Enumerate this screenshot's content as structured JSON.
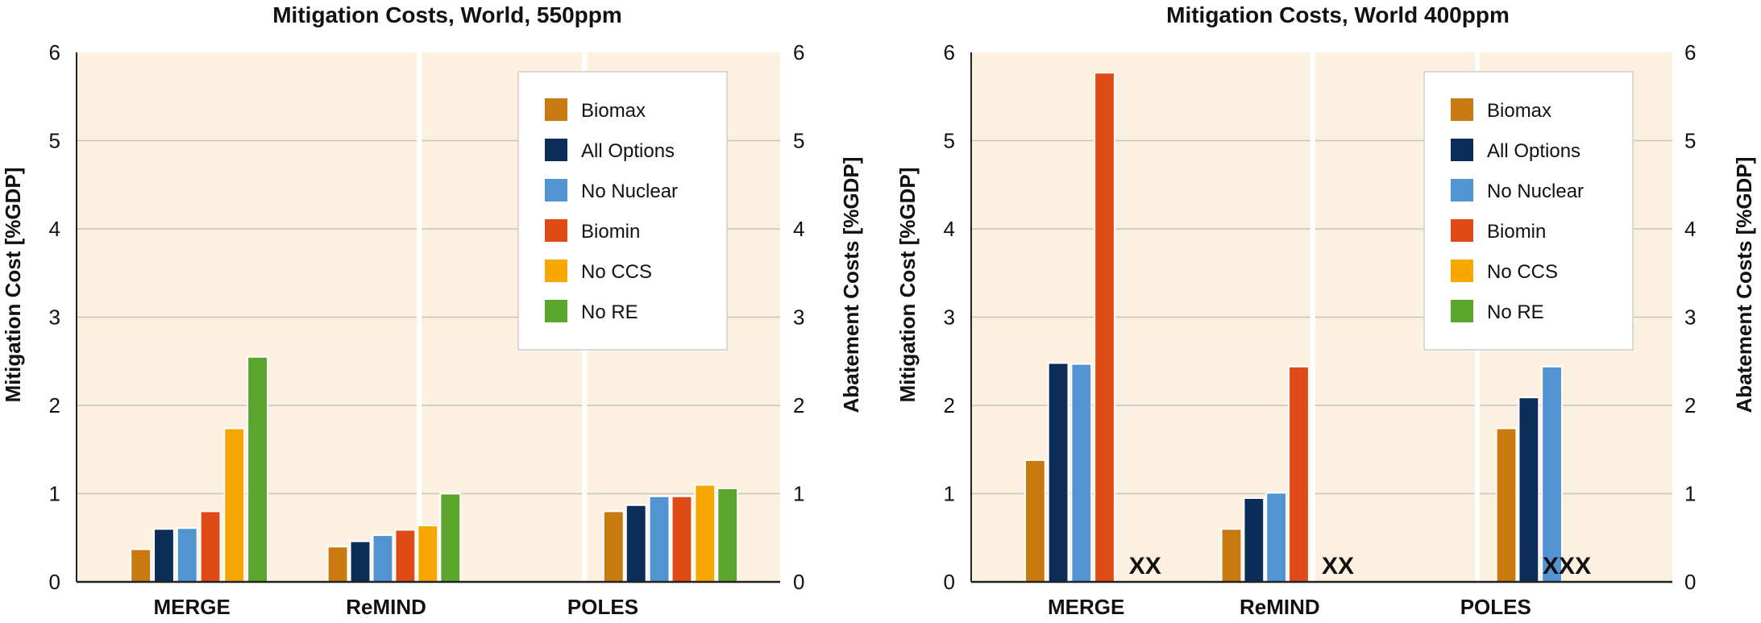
{
  "colors": {
    "plot_background": "#fcf1e1",
    "panel_divider": "#ffffff",
    "gridline": "#c9c6c0",
    "axis": "#222222",
    "text": "#111111",
    "bar_outline": "#ffffff",
    "legend_background": "#ffffff",
    "legend_border": "#cfcfcf"
  },
  "legend": {
    "placement": "top-right",
    "items": [
      {
        "label": "Biomax",
        "color": "#c8790f"
      },
      {
        "label": "All Options",
        "color": "#0c2d57"
      },
      {
        "label": "No Nuclear",
        "color": "#5294d1"
      },
      {
        "label": "Biomin",
        "color": "#df4b16"
      },
      {
        "label": "No CCS",
        "color": "#f7a800"
      },
      {
        "label": "No RE",
        "color": "#5ca52d"
      }
    ]
  },
  "chart_data": [
    {
      "type": "bar",
      "title": "Mitigation Costs, World, 550ppm",
      "ylabel": "Mitigation Cost [%GDP]",
      "ylabel_right": "Abatement Costs [%GDP]",
      "ylim": [
        0,
        6
      ],
      "yticks": [
        "0",
        "1",
        "2",
        "3",
        "4",
        "5",
        "6"
      ],
      "grid": true,
      "legend_placement": "top-right",
      "categories": [
        "MERGE",
        "ReMIND",
        "POLES"
      ],
      "series": [
        {
          "name": "Biomax",
          "values": [
            0.37,
            0.4,
            0.8
          ]
        },
        {
          "name": "All Options",
          "values": [
            0.6,
            0.46,
            0.87
          ]
        },
        {
          "name": "No Nuclear",
          "values": [
            0.61,
            0.53,
            0.97
          ]
        },
        {
          "name": "Biomin",
          "values": [
            0.8,
            0.59,
            0.97
          ]
        },
        {
          "name": "No CCS",
          "values": [
            1.74,
            0.64,
            1.1
          ]
        },
        {
          "name": "No RE",
          "values": [
            2.55,
            1.0,
            1.06
          ]
        }
      ],
      "annotations": [
        "",
        "",
        ""
      ]
    },
    {
      "type": "bar",
      "title": "Mitigation Costs, World 400ppm",
      "ylabel": "Mitigation Cost [%GDP]",
      "ylabel_right": "Abatement Costs [%GDP]",
      "ylim": [
        0,
        6
      ],
      "yticks": [
        "0",
        "1",
        "2",
        "3",
        "4",
        "5",
        "6"
      ],
      "grid": true,
      "legend_placement": "top-right",
      "categories": [
        "MERGE",
        "ReMIND",
        "POLES"
      ],
      "series": [
        {
          "name": "Biomax",
          "values": [
            1.38,
            0.6,
            1.74
          ]
        },
        {
          "name": "All Options",
          "values": [
            2.48,
            0.95,
            2.09
          ]
        },
        {
          "name": "No Nuclear",
          "values": [
            2.47,
            1.01,
            2.44
          ]
        },
        {
          "name": "Biomin",
          "values": [
            5.77,
            2.44,
            null
          ]
        },
        {
          "name": "No CCS",
          "values": [
            null,
            null,
            null
          ]
        },
        {
          "name": "No RE",
          "values": [
            null,
            null,
            null
          ]
        }
      ],
      "annotations": [
        "XX",
        "XX",
        "XXX"
      ]
    }
  ]
}
